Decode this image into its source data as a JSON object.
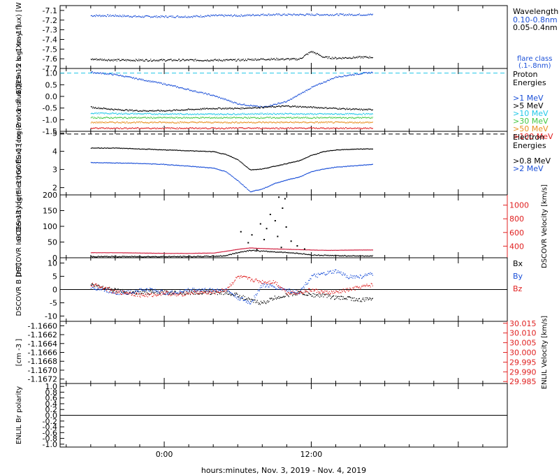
{
  "xaxis_label": "hours:minutes, Nov.  3, 2019 - Nov.  4, 2019",
  "xaxis_ticks": [
    "0:00",
    "12:00"
  ],
  "colors": {
    "black": "#000000",
    "blue": "#1a4fd8",
    "cyan": "#22c8e8",
    "green": "#44c844",
    "yellow": "#d8d830",
    "orange": "#e89020",
    "red": "#e02020",
    "dens_red": "#d02040"
  },
  "chart_data": [
    {
      "type": "scatter",
      "title": "GOES-15",
      "ylabel": "GOES-15 log(Xray flux) [W m-2]",
      "ylabel_lines": [
        "GOES-15",
        "log(Xray flux)",
        "[W m",
        "-2",
        "]"
      ],
      "ylim": [
        -7.7,
        -7.05
      ],
      "yticks": [
        "-7.1",
        "-7.2",
        "-7.3",
        "-7.4",
        "-7.5",
        "-7.6",
        "-7.7"
      ],
      "yticks_values": [
        -7.1,
        -7.2,
        -7.3,
        -7.4,
        -7.5,
        -7.6,
        -7.7
      ],
      "legend_title": "Wavelength",
      "legend": [
        "0.10-0.8nm",
        "0.05-0.4nm"
      ],
      "flare_class_label": [
        "flare class",
        "(.1-.8nm)"
      ],
      "x_hours": [
        -6,
        -4,
        -2,
        0,
        2,
        4,
        6,
        8,
        10,
        11,
        12,
        13,
        14,
        16,
        17
      ],
      "series": [
        {
          "name": "0.10-0.8nm",
          "values": [
            -7.15,
            -7.15,
            -7.16,
            -7.16,
            -7.16,
            -7.15,
            -7.15,
            -7.14,
            -7.14,
            -7.14,
            -7.14,
            -7.14,
            -7.14,
            -7.14,
            -7.14
          ]
        },
        {
          "name": "0.05-0.4nm",
          "values": [
            -7.6,
            -7.61,
            -7.61,
            -7.61,
            -7.61,
            -7.61,
            -7.61,
            -7.6,
            -7.6,
            -7.6,
            -7.52,
            -7.58,
            -7.59,
            -7.58,
            -7.58
          ]
        }
      ]
    },
    {
      "type": "scatter",
      "title": "GOES-13",
      "ylabel_lines": [
        "GOES-13",
        "log(Proton flux)",
        "[cm",
        "-2",
        "s",
        "-1",
        "sr",
        "-1",
        "]"
      ],
      "ylim": [
        -1.5,
        1.2
      ],
      "yticks": [
        "1.0",
        "0.5",
        "0.0",
        "-0.5",
        "-1.0",
        "-1.5"
      ],
      "yticks_values": [
        1.0,
        0.5,
        0.0,
        -0.5,
        -1.0,
        -1.5
      ],
      "legend_title": [
        "Proton",
        "Energies"
      ],
      "legend": [
        ">1 MeV",
        ">5 MeV",
        ">10 MeV",
        ">30 MeV",
        ">50 MeV",
        ">100 MeV"
      ],
      "dashed_threshold": 1.0,
      "x_hours": [
        -6,
        -4,
        -2,
        0,
        2,
        4,
        6,
        8,
        10,
        12,
        14,
        16,
        17
      ],
      "series": [
        {
          "name": ">1 MeV",
          "values": [
            1.05,
            0.95,
            0.75,
            0.55,
            0.3,
            0.05,
            -0.3,
            -0.45,
            -0.2,
            0.4,
            0.85,
            1.0,
            1.05
          ]
        },
        {
          "name": ">5 MeV",
          "values": [
            -0.45,
            -0.55,
            -0.6,
            -0.6,
            -0.55,
            -0.5,
            -0.5,
            -0.45,
            -0.4,
            -0.45,
            -0.5,
            -0.55,
            -0.55
          ]
        },
        {
          "name": ">10 MeV",
          "values": [
            -0.7,
            -0.72,
            -0.73,
            -0.74,
            -0.74,
            -0.75,
            -0.74,
            -0.73,
            -0.73,
            -0.74,
            -0.74,
            -0.74,
            -0.74
          ]
        },
        {
          "name": ">30 MeV",
          "values": [
            -0.9,
            -0.9,
            -0.9,
            -0.9,
            -0.9,
            -0.9,
            -0.9,
            -0.9,
            -0.9,
            -0.9,
            -0.9,
            -0.9,
            -0.9
          ]
        },
        {
          "name": ">50 MeV",
          "values": [
            -1.1,
            -1.1,
            -1.1,
            -1.1,
            -1.1,
            -1.1,
            -1.1,
            -1.1,
            -1.1,
            -1.1,
            -1.1,
            -1.1,
            -1.1
          ]
        },
        {
          "name": ">100 MeV",
          "values": [
            -1.35,
            -1.35,
            -1.35,
            -1.35,
            -1.35,
            -1.35,
            -1.35,
            -1.35,
            -1.35,
            -1.35,
            -1.35,
            -1.35,
            -1.35
          ]
        }
      ]
    },
    {
      "type": "line",
      "title": "GOES-13",
      "ylabel_lines": [
        "GOES-13",
        "log(Electron flux)",
        "[cm",
        "-2",
        "s",
        "-1",
        "sr",
        "-1",
        "]"
      ],
      "ylim": [
        1.6,
        5.1
      ],
      "yticks": [
        "5",
        "4",
        "3",
        "2"
      ],
      "yticks_values": [
        5,
        4,
        3,
        2
      ],
      "legend_title": [
        "Electron",
        "Energies"
      ],
      "legend": [
        ">0.8 MeV",
        ">2 MeV"
      ],
      "dashed_threshold": 4.95,
      "x_hours": [
        -6,
        -4,
        -2,
        0,
        2,
        4,
        5,
        6,
        7,
        8,
        9,
        10,
        11,
        12,
        13,
        14,
        16,
        17
      ],
      "series": [
        {
          "name": ">0.8 MeV",
          "values": [
            4.2,
            4.2,
            4.15,
            4.1,
            4.05,
            4.0,
            3.85,
            3.55,
            3.0,
            3.05,
            3.2,
            3.35,
            3.5,
            3.8,
            4.0,
            4.1,
            4.15,
            4.15
          ]
        },
        {
          "name": ">2 MeV",
          "values": [
            3.4,
            3.38,
            3.35,
            3.3,
            3.2,
            3.1,
            2.9,
            2.4,
            1.8,
            1.95,
            2.25,
            2.45,
            2.6,
            2.9,
            3.05,
            3.15,
            3.25,
            3.3
          ]
        }
      ]
    },
    {
      "type": "scatter",
      "title": "DSCOVR",
      "ylabel_lines": [
        "DSCOVR",
        "Ion Density",
        "[cm",
        "-3",
        "]"
      ],
      "ylim": [
        0,
        200
      ],
      "yticks": [
        "200",
        "150",
        "100",
        "50",
        "0"
      ],
      "yticks_values": [
        200,
        150,
        100,
        50,
        0
      ],
      "right_ylabel_lines": [
        "DSCOVR",
        "Velocity",
        "[km/s]"
      ],
      "right_ylim": [
        230,
        1150
      ],
      "right_yticks": [
        "1000",
        "800",
        "600",
        "400"
      ],
      "right_yticks_values": [
        1000,
        800,
        600,
        400
      ],
      "x_hours": [
        -6,
        -4,
        -2,
        0,
        2,
        4,
        5,
        6,
        7,
        8,
        9,
        10,
        11,
        12,
        13,
        14,
        16,
        17
      ],
      "series": [
        {
          "name": "Density",
          "values": [
            5,
            5,
            5,
            5,
            5,
            6,
            8,
            18,
            25,
            22,
            20,
            18,
            15,
            10,
            9,
            8,
            7,
            7
          ]
        },
        {
          "name": "Velocity",
          "values": [
            310,
            310,
            305,
            300,
            300,
            305,
            330,
            360,
            380,
            370,
            365,
            360,
            355,
            350,
            345,
            345,
            350,
            350
          ]
        }
      ],
      "scatter_points": [
        {
          "x": 9.3,
          "y": 195
        },
        {
          "x": 9.8,
          "y": 190
        },
        {
          "x": 9.6,
          "y": 160
        },
        {
          "x": 8.6,
          "y": 140
        },
        {
          "x": 9.0,
          "y": 120
        },
        {
          "x": 7.8,
          "y": 110
        },
        {
          "x": 9.9,
          "y": 100
        },
        {
          "x": 8.3,
          "y": 95
        },
        {
          "x": 6.2,
          "y": 85
        },
        {
          "x": 7.1,
          "y": 75
        },
        {
          "x": 9.2,
          "y": 70
        },
        {
          "x": 10.3,
          "y": 55
        },
        {
          "x": 8.1,
          "y": 60
        },
        {
          "x": 6.8,
          "y": 50
        },
        {
          "x": 10.8,
          "y": 40
        },
        {
          "x": 9.5,
          "y": 35
        },
        {
          "x": 11.4,
          "y": 30
        },
        {
          "x": 7.5,
          "y": 28
        }
      ]
    },
    {
      "type": "line",
      "title": "DSCOVR",
      "ylabel_lines": [
        "DSCOVR",
        "B",
        "[nT]"
      ],
      "ylim": [
        -12,
        12
      ],
      "yticks": [
        "10",
        "5",
        "0",
        "-5",
        "-10"
      ],
      "yticks_values": [
        10,
        5,
        0,
        -5,
        -10
      ],
      "legend": [
        "Bx",
        "By",
        "Bz"
      ],
      "x_hours": [
        -6,
        -5,
        -4,
        -3,
        -2,
        -1,
        0,
        1,
        2,
        3,
        4,
        5,
        6,
        7,
        8,
        9,
        10,
        11,
        12,
        13,
        14,
        15,
        16,
        17
      ],
      "series": [
        {
          "name": "Bx",
          "values": [
            2,
            1,
            0,
            -1,
            -1,
            -1,
            -1,
            -1,
            -1,
            -1,
            -1,
            -1,
            -2,
            -4,
            -5,
            -3,
            -2,
            -1,
            -2,
            -2,
            -3,
            -3,
            -4,
            -3
          ]
        },
        {
          "name": "By",
          "values": [
            1,
            0,
            -1,
            -1,
            0,
            0,
            -1,
            -1,
            0,
            0,
            0,
            0,
            -3,
            -5,
            2,
            1,
            0,
            -1,
            5,
            6,
            7,
            5,
            5,
            6
          ]
        },
        {
          "name": "Bz",
          "values": [
            2,
            1,
            -1,
            -1,
            -2,
            -2,
            -1,
            -2,
            -1,
            -1,
            -1,
            0,
            5,
            4,
            3,
            3,
            -1,
            -1,
            0,
            -1,
            -1,
            0,
            1,
            2
          ]
        }
      ]
    },
    {
      "type": "scatter",
      "title": "ENLIL",
      "ylabel_lines": [
        "[cm",
        "-3",
        "]"
      ],
      "ylim": [
        -1.1673,
        -1.1659
      ],
      "yticks": [
        "-1.1660",
        "-1.1662",
        "-1.1664",
        "-1.1666",
        "-1.1668",
        "-1.1670",
        "-1.1672"
      ],
      "yticks_values": [
        -1.166,
        -1.1662,
        -1.1664,
        -1.1666,
        -1.1668,
        -1.167,
        -1.1672
      ],
      "right_ylabel_lines": [
        "ENLIL",
        "Velocity",
        "[km/s]"
      ],
      "right_ylim": [
        29.984,
        30.016
      ],
      "right_yticks": [
        "30.015",
        "30.010",
        "30.005",
        "30.000",
        "29.995",
        "29.990",
        "29.985"
      ],
      "right_yticks_values": [
        30.015,
        30.01,
        30.005,
        30.0,
        29.995,
        29.99,
        29.985
      ]
    },
    {
      "type": "scatter",
      "title": "ENLIL",
      "ylabel_lines": [
        "ENLIL",
        "Br polarity"
      ],
      "ylim": [
        -1.1,
        1.1
      ],
      "yticks": [
        "1.0",
        "0.8",
        "0.6",
        "0.4",
        "0.2",
        "0.0",
        "-0.2",
        "-0.4",
        "-0.6",
        "-0.8",
        "-1.0"
      ],
      "yticks_values": [
        1.0,
        0.8,
        0.6,
        0.4,
        0.2,
        0.0,
        -0.2,
        -0.4,
        -0.6,
        -0.8,
        -1.0
      ]
    }
  ]
}
